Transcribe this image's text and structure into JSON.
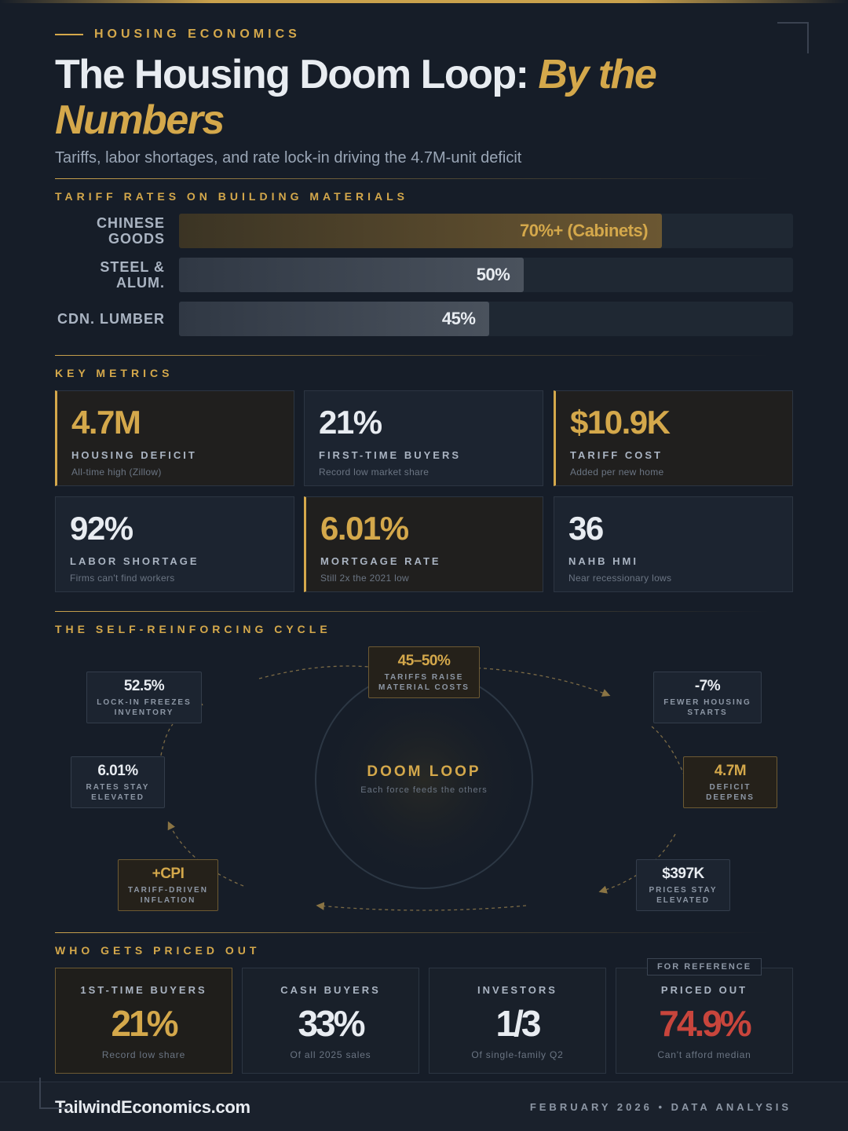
{
  "header": {
    "eyebrow": "HOUSING ECONOMICS",
    "title_main": "The Housing Doom Loop: ",
    "title_accent": "By the Numbers",
    "subtitle": "Tariffs, labor shortages, and rate lock-in driving the 4.7M-unit deficit"
  },
  "tariffs": {
    "label": "TARIFF RATES ON BUILDING MATERIALS",
    "bars": [
      {
        "name": "CHINESE GOODS",
        "value_label": "70%+ (Cabinets)",
        "value": 70
      },
      {
        "name": "STEEL & ALUM.",
        "value_label": "50%",
        "value": 50
      },
      {
        "name": "CDN. LUMBER",
        "value_label": "45%",
        "value": 45
      }
    ]
  },
  "metrics": {
    "label": "KEY METRICS",
    "cards": [
      {
        "value": "4.7M",
        "label": "HOUSING DEFICIT",
        "note": "All-time high (Zillow)"
      },
      {
        "value": "21%",
        "label": "FIRST-TIME BUYERS",
        "note": "Record low market share"
      },
      {
        "value": "$10.9K",
        "label": "TARIFF COST",
        "note": "Added per new home"
      },
      {
        "value": "92%",
        "label": "LABOR SHORTAGE",
        "note": "Firms can't find workers"
      },
      {
        "value": "6.01%",
        "label": "MORTGAGE RATE",
        "note": "Still 2x the 2021 low"
      },
      {
        "value": "36",
        "label": "NAHB HMI",
        "note": "Near recessionary lows"
      }
    ]
  },
  "cycle": {
    "label": "THE SELF-REINFORCING CYCLE",
    "center_title": "DOOM LOOP",
    "center_sub": "Each force feeds the others",
    "nodes": [
      {
        "value": "45–50%",
        "label1": "TARIFFS RAISE",
        "label2": "MATERIAL COSTS"
      },
      {
        "value": "-7%",
        "label1": "FEWER HOUSING",
        "label2": "STARTS"
      },
      {
        "value": "4.7M",
        "label1": "DEFICIT",
        "label2": "DEEPENS"
      },
      {
        "value": "$397K",
        "label1": "PRICES STAY",
        "label2": "ELEVATED"
      },
      {
        "value": "+CPI",
        "label1": "TARIFF-DRIVEN",
        "label2": "INFLATION"
      },
      {
        "value": "6.01%",
        "label1": "RATES STAY",
        "label2": "ELEVATED"
      },
      {
        "value": "52.5%",
        "label1": "LOCK-IN FREEZES",
        "label2": "INVENTORY"
      }
    ]
  },
  "priced_out": {
    "label": "WHO GETS PRICED OUT",
    "badge": "FOR REFERENCE",
    "cards": [
      {
        "label": "1ST-TIME BUYERS",
        "value": "21%",
        "note": "Record low share"
      },
      {
        "label": "CASH BUYERS",
        "value": "33%",
        "note": "Of all 2025 sales"
      },
      {
        "label": "INVESTORS",
        "value": "1/3",
        "note": "Of single-family Q2"
      },
      {
        "label": "PRICED OUT",
        "value": "74.9%",
        "note": "Can't afford median"
      }
    ]
  },
  "footer": {
    "site": "TailwindEconomics.com",
    "date": "FEBRUARY 2026 • DATA ANALYSIS"
  },
  "colors": {
    "background": "#161d28",
    "accent_gold": "#d4a84b",
    "alert_red": "#c8453c"
  }
}
